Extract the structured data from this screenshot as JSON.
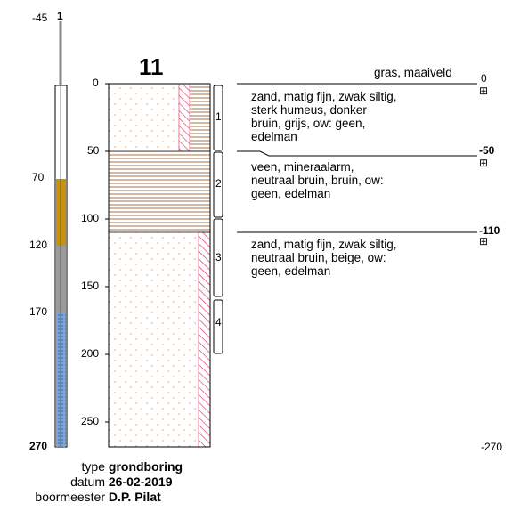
{
  "boring": {
    "id": "11",
    "piezometer_label": "1",
    "piezometer_top": "-45",
    "depth_max_label": "270",
    "depth_max_right": "-270",
    "depth_axis": [
      0,
      50,
      100,
      150,
      200,
      250
    ],
    "piezo_axis": [
      "70",
      "120",
      "170",
      "270"
    ],
    "samples": [
      "1",
      "2",
      "3",
      "4"
    ]
  },
  "surface_label": "gras, maaiveld",
  "layers": [
    {
      "depth_label": "0",
      "lines": [
        "zand, matig fijn, zwak siltig,",
        "sterk humeus, donker",
        "bruin, grijs, ow: geen,",
        "edelman"
      ]
    },
    {
      "depth_label": "-50",
      "lines": [
        "veen, mineraalarm,",
        "neutraal bruin, bruin, ow:",
        "geen, edelman"
      ]
    },
    {
      "depth_label": "-110",
      "lines": [
        "zand, matig fijn, zwak siltig,",
        "neutraal bruin, beige, ow:",
        "geen, edelman"
      ]
    }
  ],
  "meta": [
    {
      "key": "type",
      "value": "grondboring"
    },
    {
      "key": "datum",
      "value": "26-02-2019"
    },
    {
      "key": "boormeester",
      "value": "D.P. Pilat"
    }
  ],
  "colors": {
    "sand_dot": "#f3b885",
    "peat_line": "#8b5a2b",
    "humus_hatch": "#e0245a",
    "filter_gold": "#c8930a",
    "filter_gray": "#999999",
    "filter_blue": "#5b8fd1"
  }
}
